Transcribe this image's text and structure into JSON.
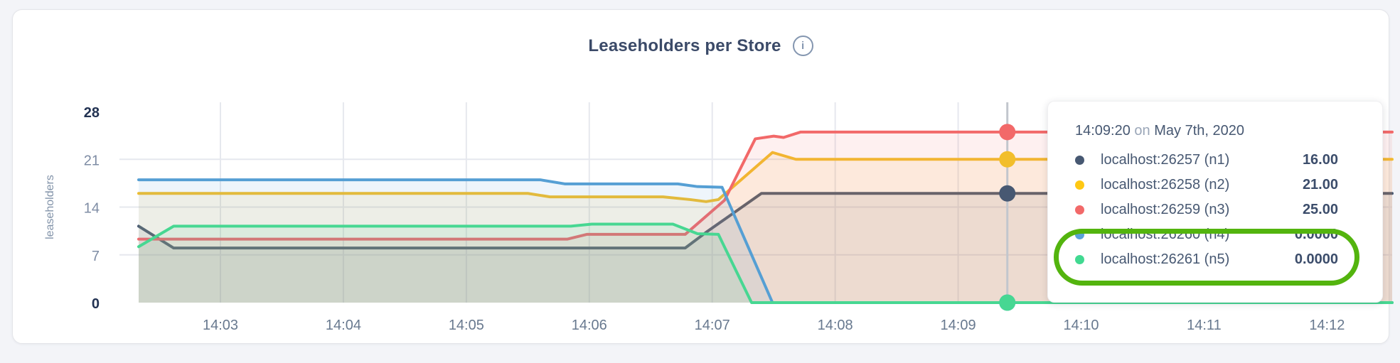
{
  "header": {
    "title": "Leaseholders per Store",
    "info_icon_glyph": "i"
  },
  "chart_data": {
    "type": "area",
    "title": "Leaseholders per Store",
    "ylabel": "leaseholders",
    "ylim": [
      0,
      28
    ],
    "y_ticks": [
      0,
      7,
      14,
      21,
      28
    ],
    "y_ticks_bold": [
      0,
      28
    ],
    "x_domain_minutes": [
      2.335,
      12.53
    ],
    "x_ticks": [
      {
        "t": 3,
        "label": "14:03"
      },
      {
        "t": 4,
        "label": "14:04"
      },
      {
        "t": 5,
        "label": "14:05"
      },
      {
        "t": 6,
        "label": "14:06"
      },
      {
        "t": 7,
        "label": "14:07"
      },
      {
        "t": 8,
        "label": "14:08"
      },
      {
        "t": 9,
        "label": "14:09"
      },
      {
        "t": 10,
        "label": "14:10"
      },
      {
        "t": 11,
        "label": "14:11"
      },
      {
        "t": 12,
        "label": "14:12"
      }
    ],
    "grid": true,
    "legend_position": "tooltip-only",
    "series": [
      {
        "id": "n1",
        "name": "localhost:26257 (n1)",
        "color": "#475872",
        "points": [
          [
            2.335,
            11.2
          ],
          [
            2.62,
            8
          ],
          [
            6.78,
            8
          ],
          [
            6.95,
            10.3
          ],
          [
            7.4,
            16
          ],
          [
            12.53,
            16
          ]
        ]
      },
      {
        "id": "n2",
        "name": "localhost:26258 (n2)",
        "color": "#f2be2c",
        "points": [
          [
            2.335,
            16
          ],
          [
            5.5,
            16
          ],
          [
            5.68,
            15.5
          ],
          [
            6.6,
            15.5
          ],
          [
            6.82,
            15.1
          ],
          [
            6.95,
            14.8
          ],
          [
            7.05,
            15.1
          ],
          [
            7.49,
            22
          ],
          [
            7.68,
            21
          ],
          [
            12.53,
            21
          ]
        ]
      },
      {
        "id": "n3",
        "name": "localhost:26259 (n3)",
        "color": "#f26969",
        "points": [
          [
            2.335,
            9.3
          ],
          [
            5.82,
            9.3
          ],
          [
            5.98,
            10
          ],
          [
            6.78,
            10
          ],
          [
            7.1,
            15
          ],
          [
            7.35,
            24
          ],
          [
            7.5,
            24.4
          ],
          [
            7.58,
            24.2
          ],
          [
            7.72,
            25
          ],
          [
            12.53,
            25
          ]
        ]
      },
      {
        "id": "n4",
        "name": "localhost:26260 (n4)",
        "color": "#559fd4",
        "points": [
          [
            2.335,
            18
          ],
          [
            5.6,
            18
          ],
          [
            5.8,
            17.4
          ],
          [
            6.72,
            17.4
          ],
          [
            6.88,
            17
          ],
          [
            7.08,
            16.9
          ],
          [
            7.49,
            0
          ],
          [
            12.53,
            0
          ]
        ]
      },
      {
        "id": "n5",
        "name": "localhost:26261 (n5)",
        "color": "#47d792",
        "points": [
          [
            2.335,
            8.2
          ],
          [
            2.62,
            11.2
          ],
          [
            5.85,
            11.2
          ],
          [
            6.02,
            11.5
          ],
          [
            6.68,
            11.5
          ],
          [
            6.88,
            10.1
          ],
          [
            7.05,
            10
          ],
          [
            7.32,
            0
          ],
          [
            12.53,
            0
          ]
        ]
      }
    ],
    "hover": {
      "t": 9.4,
      "time_label": "14:09:20",
      "values": {
        "n1": 16,
        "n2": 21,
        "n3": 25,
        "n4": 0,
        "n5": 0
      }
    }
  },
  "tooltip": {
    "time": "14:09:20",
    "on_word": "on",
    "date": "May 7th, 2020",
    "rows": [
      {
        "label": "localhost:26257 (n1)",
        "value": "16.00",
        "color": "#475872"
      },
      {
        "label": "localhost:26258 (n2)",
        "value": "21.00",
        "color": "#ffc813"
      },
      {
        "label": "localhost:26259 (n3)",
        "value": "25.00",
        "color": "#f26969"
      },
      {
        "label": "localhost:26260 (n4)",
        "value": "0.0000",
        "color": "#5aa2da"
      },
      {
        "label": "localhost:26261 (n5)",
        "value": "0.0000",
        "color": "#41d991"
      }
    ]
  },
  "annotation": {
    "shape": "oval",
    "color": "#53b40e",
    "encircles": [
      "localhost:26260 (n4)",
      "localhost:26261 (n5)"
    ]
  },
  "colors": {
    "page_bg": "#f3f4f8",
    "card_bg": "#ffffff",
    "gridline": "#e6e8ee",
    "hover_line": "#c2c6cd",
    "title_text": "#3b4a68",
    "tick_text": "#7e8ca4"
  }
}
